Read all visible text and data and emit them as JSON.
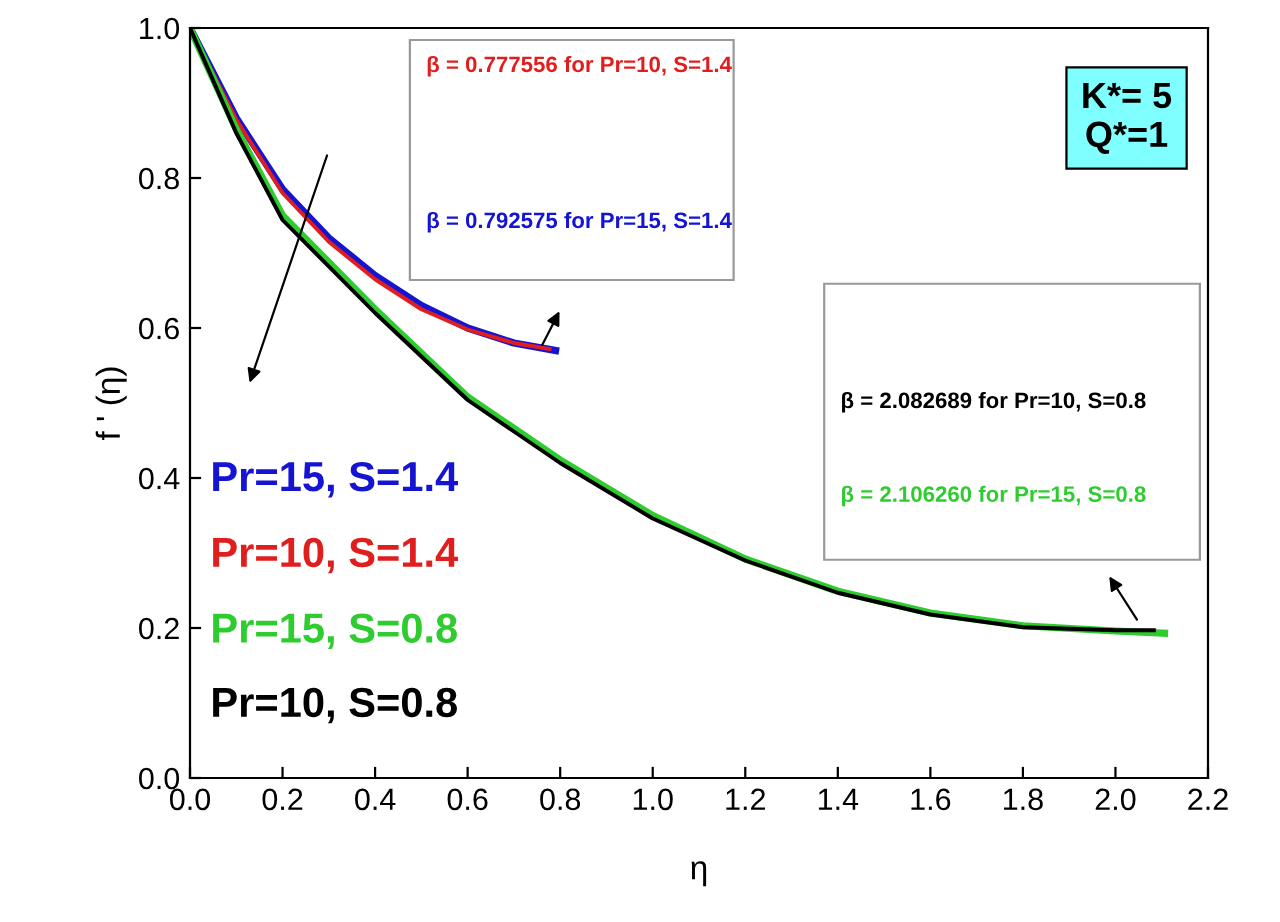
{
  "chart_data": {
    "type": "line",
    "xlabel": "η",
    "ylabel": "f ' (η)",
    "xlim": [
      0.0,
      2.2
    ],
    "xticks": [
      {
        "value": 0,
        "label": "0.0"
      },
      0.2,
      0.4,
      0.6,
      0.8,
      {
        "value": 1,
        "label": "1.0"
      },
      1.2,
      1.4,
      1.6,
      1.8,
      {
        "value": 2,
        "label": "2.0"
      },
      2.2
    ],
    "ylim": [
      0.0,
      1.0
    ],
    "yticks": [
      {
        "value": 0,
        "label": "0.0"
      },
      0.2,
      0.4,
      0.6,
      0.8,
      {
        "value": 1,
        "label": "1.0"
      }
    ],
    "grid": false,
    "legend": false,
    "marker": "none",
    "line_style": "solid",
    "series": [
      {
        "name": "Pr=15, S=1.4",
        "color": "#1414d2",
        "x": [
          0,
          0.1,
          0.2,
          0.3,
          0.4,
          0.5,
          0.6,
          0.7,
          0.79
        ],
        "values": [
          1.0,
          0.88,
          0.785,
          0.72,
          0.67,
          0.63,
          0.6,
          0.58,
          0.57
        ]
      },
      {
        "name": "Pr=10, S=1.4",
        "color": "#e01e1e",
        "x": [
          0,
          0.1,
          0.2,
          0.3,
          0.4,
          0.5,
          0.6,
          0.7,
          0.777
        ],
        "values": [
          1.0,
          0.878,
          0.78,
          0.715,
          0.665,
          0.625,
          0.598,
          0.58,
          0.572
        ]
      },
      {
        "name": "Pr=15, S=0.8",
        "color": "#2ecc2e",
        "x": [
          0,
          0.1,
          0.2,
          0.4,
          0.6,
          0.8,
          1.0,
          1.2,
          1.4,
          1.6,
          1.8,
          2.0,
          2.106
        ],
        "values": [
          1.0,
          0.865,
          0.75,
          0.625,
          0.508,
          0.424,
          0.35,
          0.292,
          0.249,
          0.22,
          0.203,
          0.196,
          0.193
        ]
      },
      {
        "name": "Pr=10, S=0.8",
        "color": "#000000",
        "x": [
          0,
          0.1,
          0.2,
          0.4,
          0.6,
          0.8,
          1.0,
          1.2,
          1.4,
          1.6,
          1.8,
          2.0,
          2.083
        ],
        "values": [
          1.0,
          0.86,
          0.744,
          0.62,
          0.504,
          0.42,
          0.346,
          0.29,
          0.247,
          0.218,
          0.201,
          0.197,
          0.197
        ]
      }
    ],
    "annotations": [
      "K*= 5\nQ*=1",
      "β = 0.777556 for Pr=10, S=1.4",
      "β = 0.792575 for Pr=15, S=1.4",
      "β = 2.082689 for Pr=10, S=0.8",
      "β = 2.106260 for Pr=15, S=0.8"
    ]
  }
}
